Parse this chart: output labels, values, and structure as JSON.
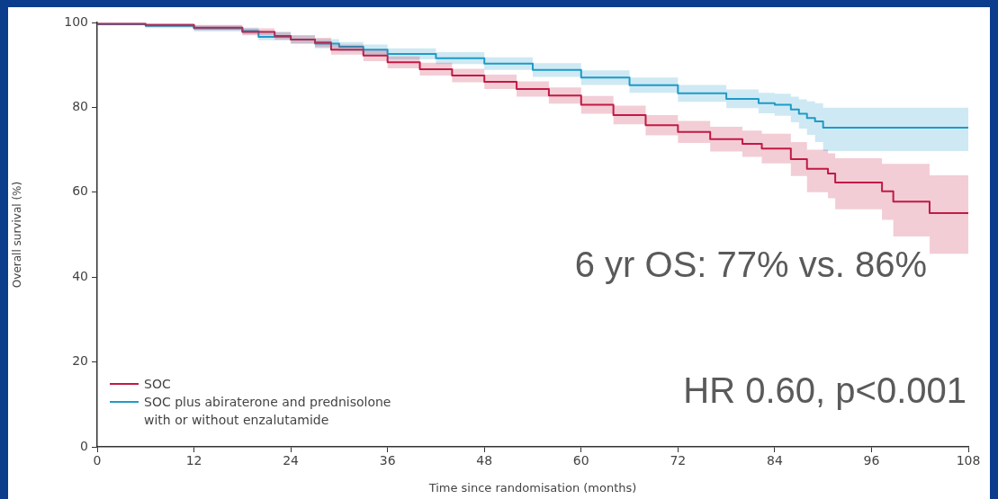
{
  "chart_data": {
    "type": "step",
    "xlabel": "Time since randomisation (months)",
    "ylabel": "Overall survival (%)",
    "xlim": [
      0,
      108
    ],
    "xticks": [
      0,
      12,
      24,
      36,
      48,
      60,
      72,
      84,
      96,
      108
    ],
    "ylim": [
      0,
      100
    ],
    "yticks": [
      0,
      20,
      40,
      60,
      80,
      100
    ],
    "grid": false,
    "legend": "bottom left",
    "marker": "none",
    "annotations": [
      "6 yr OS: 77% vs. 86%",
      "HR 0.60, p<0.001"
    ],
    "series": [
      {
        "name": "SOC",
        "color": "#c21a45",
        "x": [
          0,
          6,
          12,
          18,
          22,
          24,
          27,
          29,
          33,
          36,
          40,
          44,
          48,
          52,
          56,
          60,
          64,
          68,
          72,
          76,
          80,
          82.4,
          86,
          88,
          90.6,
          91.5,
          97.3,
          98.7,
          103.2,
          105.1,
          108
        ],
        "values": [
          100,
          99.7,
          99.4,
          98.8,
          97.8,
          96.8,
          96,
          95.3,
          93.6,
          92.2,
          90.6,
          89,
          87.5,
          86,
          84.3,
          82.8,
          80.6,
          78.2,
          75.8,
          74.2,
          72.5,
          71.4,
          70.3,
          67.8,
          65.5,
          64.4,
          62.3,
          60.2,
          57.8,
          55.1,
          55.1
        ],
        "lower": [
          100,
          99.4,
          99,
          98.2,
          97,
          95.9,
          95,
          94.2,
          92.4,
          90.9,
          89.2,
          87.5,
          85.9,
          84.3,
          82.5,
          80.9,
          78.5,
          76,
          73.4,
          71.6,
          69.6,
          68.3,
          66.8,
          63.8,
          60,
          58.6,
          56,
          53.5,
          49.6,
          45.5,
          45.5
        ],
        "upper": [
          100,
          99.9,
          99.8,
          99.4,
          98.6,
          97.7,
          97,
          96.4,
          94.8,
          93.5,
          92,
          90.5,
          89.1,
          87.7,
          86.1,
          84.7,
          82.7,
          80.4,
          78.2,
          76.8,
          75.4,
          74.5,
          73.8,
          71.8,
          70,
          69.2,
          68,
          66.7,
          66.7,
          64,
          64
        ]
      },
      {
        "name": "SOC plus abiraterone and prednisolone with or without enzalutamide",
        "color": "#1e9cc8",
        "x": [
          0,
          6,
          12,
          18,
          20,
          24,
          27,
          30,
          33,
          36,
          42,
          48,
          54,
          60,
          66,
          72,
          78,
          82,
          84,
          86,
          87,
          88,
          89,
          90,
          97.6,
          108
        ],
        "values": [
          100,
          99.6,
          99.2,
          98.6,
          98,
          96.6,
          96,
          95,
          94.3,
          93.6,
          92.6,
          91.6,
          90.3,
          88.8,
          87,
          85.2,
          83.3,
          82,
          81,
          80.6,
          79.5,
          78.5,
          77.5,
          76.7,
          75.2,
          75.2
        ],
        "lower": [
          100,
          99.3,
          98.7,
          97.9,
          97.2,
          95.8,
          95,
          93.9,
          93.2,
          92.4,
          91.3,
          90.2,
          88.8,
          87.2,
          85.3,
          83.4,
          81.3,
          79.8,
          78.6,
          78,
          76.5,
          75,
          73.5,
          71.8,
          69.7,
          69.7
        ],
        "upper": [
          100,
          99.9,
          99.7,
          99.3,
          98.8,
          97.8,
          97,
          96.1,
          95.4,
          94.8,
          93.9,
          93,
          91.8,
          90.4,
          88.7,
          87,
          85.3,
          84.2,
          83.4,
          83.2,
          82.5,
          81.9,
          81.4,
          81,
          79.9,
          79.9
        ]
      }
    ]
  }
}
